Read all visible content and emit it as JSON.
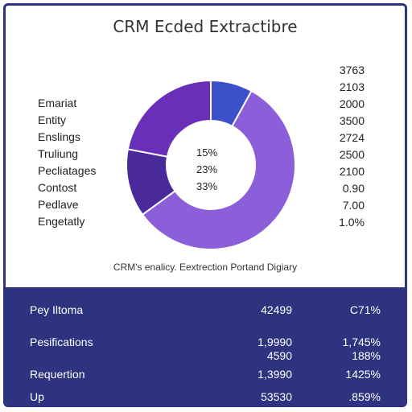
{
  "chart_data": {
    "type": "pie",
    "variant": "donut",
    "title": "CRM Ecded Extractibre",
    "caption": "CRM's enalicy. Eextrection Portand Digiary",
    "legend_labels": [
      "Emariat",
      "Entity",
      "Enslings",
      "Truliung",
      "Pecliatages",
      "Contost",
      "Pedlave",
      "Engetatly"
    ],
    "right_values": [
      "3763",
      "2103",
      "2000",
      "3500",
      "2724",
      "2500",
      "2100",
      "0.90",
      "7.00",
      "1.0%"
    ],
    "center_labels": [
      "15%",
      "23%",
      "33%"
    ],
    "slices": [
      {
        "value": 8,
        "color": "#3b50c9"
      },
      {
        "value": 57,
        "color": "#8a5fd9"
      },
      {
        "value": 13,
        "color": "#4a2a9a"
      },
      {
        "value": 22,
        "color": "#6a2fb8"
      }
    ]
  },
  "table": {
    "rows": [
      {
        "name": "Pey Iltoma",
        "values": [
          "42499"
        ],
        "pcts": [
          "C71%"
        ]
      },
      {
        "name": "Pesifications",
        "values": [
          "1,9990",
          "4590"
        ],
        "pcts": [
          "1,745%",
          "188%"
        ]
      },
      {
        "name": "Requertion",
        "values": [
          "1,3990"
        ],
        "pcts": [
          "1425%"
        ]
      },
      {
        "name": "Up",
        "values": [
          "53530"
        ],
        "pcts": [
          ".859%"
        ]
      }
    ]
  }
}
